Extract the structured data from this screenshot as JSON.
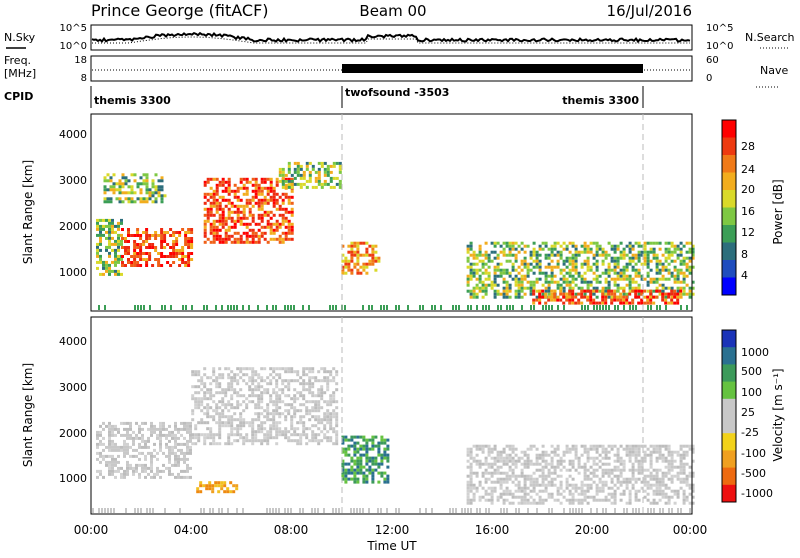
{
  "header": {
    "station": "Prince George (fitACF)",
    "beam": "Beam 00",
    "date": "16/Jul/2016"
  },
  "top_panels": {
    "nsky_label": "N.Sky",
    "nsky_ticks": [
      "10^5",
      "10^0"
    ],
    "nsearch_label": "N.Search",
    "nsearch_ticks": [
      "10^5",
      "10^0"
    ],
    "freq_label_1": "Freq.",
    "freq_label_2": "[MHz]",
    "freq_ticks": [
      "18",
      "8"
    ],
    "nave_label": "Nave",
    "nave_ticks": [
      "60",
      "0"
    ],
    "cpid_label": "CPID",
    "cpid_segments": [
      "themis 3300",
      "twofsound -3503",
      "themis 3300"
    ]
  },
  "x_axis": {
    "title": "Time UT",
    "ticks": [
      "00:00",
      "04:00",
      "08:00",
      "12:00",
      "16:00",
      "20:00",
      "00:00"
    ]
  },
  "power_panel": {
    "ylabel": "Slant Range [km]",
    "yticks": [
      "4000",
      "3000",
      "2000",
      "1000"
    ],
    "cbar_label": "Power [dB]",
    "cbar_ticks": [
      "28",
      "24",
      "20",
      "16",
      "12",
      "8",
      "4"
    ],
    "cbar_colors": [
      "#ff0000",
      "#ee3a10",
      "#f07a18",
      "#f2ad1e",
      "#d9d92a",
      "#7ec843",
      "#3b9e56",
      "#2c6e7c",
      "#1f4dbe",
      "#0000ff"
    ]
  },
  "velocity_panel": {
    "ylabel": "Slant Range [km]",
    "yticks": [
      "4000",
      "3000",
      "2000",
      "1000"
    ],
    "cbar_label": "Velocity [m s⁻¹]",
    "cbar_ticks": [
      "1000",
      "500",
      "100",
      "25",
      "-25",
      "-100",
      "-500",
      "-1000"
    ],
    "cbar_colors": [
      "#1a33b8",
      "#2a7090",
      "#3c9a5a",
      "#65c240",
      "#c8c8c8",
      "#c8c8c8",
      "#f2d21a",
      "#f0a020",
      "#ee6a10",
      "#ee1010"
    ]
  },
  "chart_data": {
    "type": "heatmap",
    "x_range_hours": [
      0,
      24
    ],
    "y_range_km": [
      180,
      4500
    ],
    "cpid_changes_hours": [
      10.0,
      22.0
    ],
    "power_regions": [
      {
        "t": [
          0.2,
          1.2
        ],
        "r": [
          1000,
          2200
        ],
        "level": "green"
      },
      {
        "t": [
          1.2,
          4.0
        ],
        "r": [
          1200,
          2000
        ],
        "level": "red"
      },
      {
        "t": [
          0.5,
          3.0
        ],
        "r": [
          2600,
          3200
        ],
        "level": "green"
      },
      {
        "t": [
          4.5,
          8.0
        ],
        "r": [
          1700,
          3100
        ],
        "level": "red"
      },
      {
        "t": [
          7.5,
          10.0
        ],
        "r": [
          2900,
          3450
        ],
        "level": "green"
      },
      {
        "t": [
          10.0,
          11.5
        ],
        "r": [
          1000,
          1700
        ],
        "level": "orange"
      },
      {
        "t": [
          15.0,
          24.0
        ],
        "r": [
          500,
          1700
        ],
        "level": "green"
      },
      {
        "t": [
          17.5,
          23.5
        ],
        "r": [
          350,
          650
        ],
        "level": "red"
      }
    ],
    "velocity_regions": [
      {
        "t": [
          0.2,
          4.0
        ],
        "r": [
          1000,
          2200
        ],
        "level": "grey"
      },
      {
        "t": [
          4.0,
          9.8
        ],
        "r": [
          1700,
          3400
        ],
        "level": "grey"
      },
      {
        "t": [
          4.2,
          5.8
        ],
        "r": [
          650,
          900
        ],
        "level": "orange"
      },
      {
        "t": [
          10.0,
          11.8
        ],
        "r": [
          900,
          1900
        ],
        "level": "green"
      },
      {
        "t": [
          15.0,
          24.0
        ],
        "r": [
          400,
          1700
        ],
        "level": "grey"
      }
    ]
  }
}
